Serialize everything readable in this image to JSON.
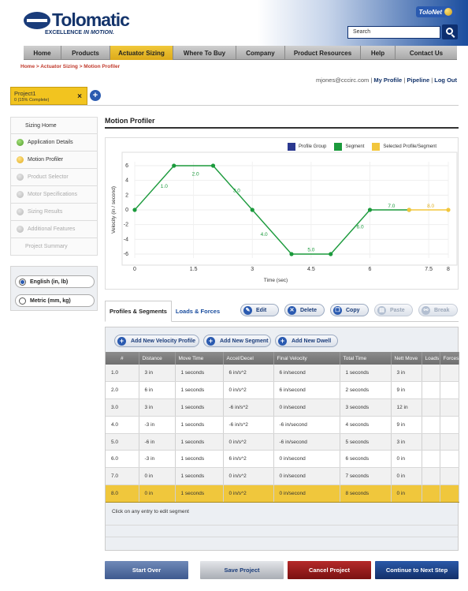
{
  "header": {
    "brand": "Tolomatic",
    "tagline_prefix": "EXCELLENCE ",
    "tagline_emphasis": "IN MOTION.",
    "tolonet_label": "ToloNet",
    "search_placeholder": "Search"
  },
  "nav": {
    "items": [
      {
        "label": "Home"
      },
      {
        "label": "Products"
      },
      {
        "label": "Actuator Sizing"
      },
      {
        "label": "Where To Buy"
      },
      {
        "label": "Company"
      },
      {
        "label": "Product Resources"
      },
      {
        "label": "Help"
      },
      {
        "label": "Contact Us"
      }
    ],
    "active_index": 2
  },
  "breadcrumb": "Home > Actuator Sizing > Motion Profiler",
  "user": {
    "email": "mjones@cccirc.com",
    "links": [
      "My Profile",
      "Pipeline",
      "Log Out"
    ]
  },
  "project": {
    "name": "Project1",
    "completion": "0 (15% Complete)",
    "close_glyph": "×",
    "add_glyph": "+"
  },
  "sidebar": {
    "items": [
      {
        "label": "Sizing Home",
        "status": "none"
      },
      {
        "label": "Application Details",
        "status": "complete"
      },
      {
        "label": "Motion Profiler",
        "status": "current"
      },
      {
        "label": "Product Selector",
        "status": "pending"
      },
      {
        "label": "Motor Specifications",
        "status": "pending"
      },
      {
        "label": "Sizing Results",
        "status": "pending"
      },
      {
        "label": "Additional Features",
        "status": "pending"
      },
      {
        "label": "Project Summary",
        "status": "none"
      }
    ],
    "units": [
      {
        "label": "English (in, lb)",
        "selected": true
      },
      {
        "label": "Metric (mm, kg)",
        "selected": false
      }
    ]
  },
  "main": {
    "title": "Motion Profiler"
  },
  "chart_data": {
    "type": "line",
    "legend": [
      "Profile Group",
      "Segment",
      "Selected Profile/Segment"
    ],
    "legend_colors": [
      "#2b3990",
      "#1b9a3c",
      "#f2c63c"
    ],
    "ylabel": "Velocity (in / second)",
    "xlabel": "Time (sec)",
    "xlim": [
      0,
      8
    ],
    "ylim": [
      -6,
      6
    ],
    "xticks": [
      "0",
      "1.5",
      "3",
      "4.5",
      "6",
      "7.5",
      "8"
    ],
    "xtick_values": [
      0,
      1.5,
      3,
      4.5,
      6,
      7.5,
      8
    ],
    "yticks": [
      "6",
      "4",
      "2",
      "0",
      "-2",
      "-4",
      "-6"
    ],
    "ytick_values": [
      6,
      4,
      2,
      0,
      -2,
      -4,
      -6
    ],
    "series": [
      {
        "name": "Segment",
        "color": "#1b9a3c",
        "points": [
          [
            0,
            0
          ],
          [
            1,
            6
          ],
          [
            2,
            6
          ],
          [
            3,
            0
          ],
          [
            4,
            -6
          ],
          [
            5,
            -6
          ],
          [
            6,
            0
          ],
          [
            7,
            0
          ]
        ]
      },
      {
        "name": "Selected Profile/Segment",
        "color": "#f2c63c",
        "points": [
          [
            7,
            0
          ],
          [
            8,
            0
          ]
        ]
      }
    ],
    "segment_labels": [
      {
        "text": "1.0",
        "x": 0.75,
        "y": 3.2
      },
      {
        "text": "2.0",
        "x": 1.55,
        "y": 4.9
      },
      {
        "text": "3.0",
        "x": 2.6,
        "y": 2.6
      },
      {
        "text": "4.0",
        "x": 3.3,
        "y": -3.3
      },
      {
        "text": "5.0",
        "x": 4.5,
        "y": -5.4
      },
      {
        "text": "6.0",
        "x": 5.75,
        "y": -2.3
      },
      {
        "text": "7.0",
        "x": 6.55,
        "y": 0.55
      },
      {
        "text": "8.0",
        "x": 7.55,
        "y": 0.55
      }
    ]
  },
  "tabs": [
    {
      "label": "Profiles & Segments",
      "active": true
    },
    {
      "label": "Loads & Forces",
      "active": false
    }
  ],
  "toolbar": [
    {
      "label": "Edit",
      "icon": "pencil-icon",
      "glyph": "✎",
      "enabled": true
    },
    {
      "label": "Delete",
      "icon": "trash-icon",
      "glyph": "✕",
      "enabled": true
    },
    {
      "label": "Copy",
      "icon": "copy-icon",
      "glyph": "❐",
      "enabled": true
    },
    {
      "label": "Paste",
      "icon": "clipboard-icon",
      "glyph": "▤",
      "enabled": false
    },
    {
      "label": "Break",
      "icon": "break-link-icon",
      "glyph": "⚯",
      "enabled": false
    }
  ],
  "add_buttons": [
    {
      "label": "Add New Velocity Profile"
    },
    {
      "label": "Add New Segment"
    },
    {
      "label": "Add New Dwell"
    }
  ],
  "table": {
    "columns": [
      "#",
      "Distance",
      "Move Time",
      "Accel/Decel",
      "Final Velocity",
      "Total Time",
      "Nett Move",
      "Loads",
      "Forces"
    ],
    "rows": [
      [
        "1.0",
        "3 in",
        "1 seconds",
        "6 in/s^2",
        "6 in/second",
        "1 seconds",
        "3 in",
        "",
        ""
      ],
      [
        "2.0",
        "6 in",
        "1 seconds",
        "0 in/s^2",
        "6 in/second",
        "2 seconds",
        "9 in",
        "",
        ""
      ],
      [
        "3.0",
        "3 in",
        "1 seconds",
        "-6 in/s^2",
        "0 in/second",
        "3 seconds",
        "12 in",
        "",
        ""
      ],
      [
        "4.0",
        "-3 in",
        "1 seconds",
        "-6 in/s^2",
        "-6 in/second",
        "4 seconds",
        "9 in",
        "",
        ""
      ],
      [
        "5.0",
        "-6 in",
        "1 seconds",
        "0 in/s^2",
        "-6 in/second",
        "5 seconds",
        "3 in",
        "",
        ""
      ],
      [
        "6.0",
        "-3 in",
        "1 seconds",
        "6 in/s^2",
        "0 in/second",
        "6 seconds",
        "0 in",
        "",
        ""
      ],
      [
        "7.0",
        "0 in",
        "1 seconds",
        "0 in/s^2",
        "0 in/second",
        "7 seconds",
        "0 in",
        "",
        ""
      ],
      [
        "8.0",
        "0 in",
        "1 seconds",
        "0 in/s^2",
        "0 in/second",
        "8 seconds",
        "0 in",
        "",
        ""
      ]
    ],
    "selected_row": 7,
    "hint": "Click on any entry to edit segment"
  },
  "footer_buttons": [
    {
      "label": "Start Over",
      "color": "#4e6a9e"
    },
    {
      "label": "Save Project",
      "color": "#b9bcc2"
    },
    {
      "label": "Cancel Project",
      "color": "#8e1a1a"
    },
    {
      "label": "Continue to Next Step",
      "color": "#1a3f82"
    }
  ]
}
